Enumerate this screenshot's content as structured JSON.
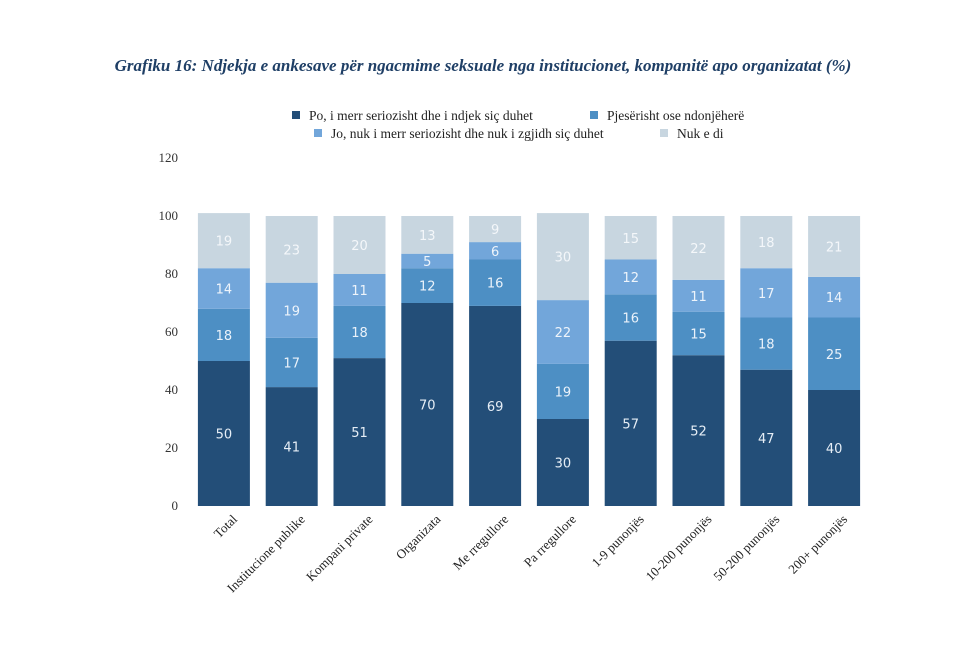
{
  "chart_data": {
    "type": "bar",
    "stacked": true,
    "title": "Grafiku 16: Ndjekja e ankesave për ngacmime seksuale nga institucionet, kompanitë apo organizatat (%)",
    "xlabel": "",
    "ylabel": "",
    "ylim": [
      0,
      120
    ],
    "yticks": [
      0,
      20,
      40,
      60,
      80,
      100,
      120
    ],
    "grid": false,
    "legend_position": "top",
    "categories": [
      "Total",
      "Institucione publike",
      "Kompani private",
      "Organizata",
      "Me rregullore",
      "Pa rregullore",
      "1-9 punonjës",
      "10-200 punonjës",
      "50-200 punonjës",
      "200+ punonjës"
    ],
    "series": [
      {
        "name": "Po, i merr seriozisht dhe i ndjek siç duhet",
        "color": "#234e78",
        "label_color": "#e6eef6",
        "values": [
          50,
          41,
          51,
          70,
          69,
          30,
          57,
          52,
          47,
          40
        ]
      },
      {
        "name": "Pjesërisht ose ndonjëherë",
        "color": "#4d8fc4",
        "label_color": "#eaf2fa",
        "values": [
          18,
          17,
          18,
          12,
          16,
          19,
          16,
          15,
          18,
          25
        ]
      },
      {
        "name": "Jo, nuk i merr seriozisht dhe nuk i zgjidh siç duhet",
        "color": "#72a6da",
        "label_color": "#eef4fb",
        "values": [
          14,
          19,
          11,
          5,
          6,
          22,
          12,
          11,
          17,
          14
        ]
      },
      {
        "name": "Nuk e di",
        "color": "#c8d6e0",
        "label_color": "#f4f7fa",
        "values": [
          19,
          23,
          20,
          13,
          9,
          30,
          15,
          22,
          18,
          21
        ]
      }
    ]
  }
}
